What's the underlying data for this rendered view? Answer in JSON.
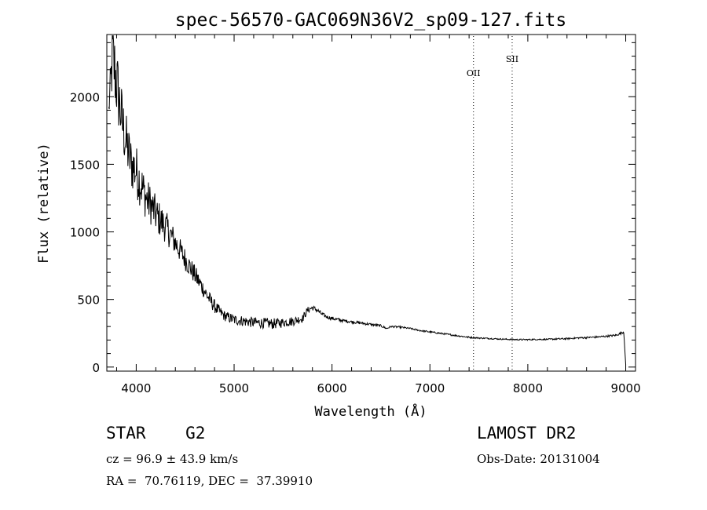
{
  "chart_data": {
    "type": "line",
    "title": "spec-56570-GAC069N36V2_sp09-127.fits",
    "xlabel": "Wavelength (Å)",
    "ylabel": "Flux (relative)",
    "xlim": [
      3700,
      9100
    ],
    "ylim": [
      -30,
      2460
    ],
    "xticks": [
      4000,
      5000,
      6000,
      7000,
      8000,
      9000
    ],
    "yticks": [
      0,
      500,
      1000,
      1500,
      2000
    ],
    "grid": false,
    "series": [
      {
        "x": [
          3720,
          3760,
          3800,
          3830,
          3860,
          3900,
          3950,
          4000,
          4050,
          4100,
          4150,
          4200,
          4250,
          4300,
          4350,
          4400,
          4450,
          4500,
          4550,
          4600,
          4650,
          4700,
          4750,
          4800,
          4850,
          4900,
          5000,
          5100,
          5200,
          5300,
          5400,
          5500,
          5600,
          5700,
          5750,
          5800,
          5850,
          5900,
          5950,
          6000,
          6100,
          6200,
          6300,
          6400,
          6500,
          6560,
          6600,
          6700,
          6800,
          6900,
          7000,
          7100,
          7200,
          7300,
          7400,
          7500,
          7600,
          7700,
          7800,
          7900,
          8000,
          8100,
          8200,
          8300,
          8400,
          8500,
          8600,
          8700,
          8800,
          8900,
          8950,
          8980,
          9000
        ],
        "y": [
          1900,
          2300,
          2100,
          1950,
          1800,
          1650,
          1500,
          1450,
          1350,
          1250,
          1200,
          1130,
          1080,
          1040,
          980,
          920,
          860,
          800,
          740,
          680,
          620,
          560,
          500,
          450,
          410,
          380,
          350,
          340,
          330,
          325,
          320,
          330,
          340,
          360,
          420,
          440,
          420,
          390,
          370,
          360,
          345,
          335,
          325,
          315,
          305,
          285,
          300,
          295,
          285,
          270,
          260,
          250,
          240,
          230,
          220,
          215,
          212,
          208,
          205,
          203,
          203,
          205,
          205,
          208,
          210,
          215,
          218,
          222,
          228,
          235,
          250,
          260,
          20
        ],
        "noise": [
          80,
          300,
          300,
          260,
          240,
          220,
          200,
          200,
          180,
          160,
          150,
          140,
          130,
          120,
          110,
          100,
          90,
          85,
          80,
          75,
          70,
          60,
          55,
          50,
          45,
          40,
          40,
          40,
          40,
          40,
          40,
          35,
          35,
          30,
          25,
          20,
          18,
          15,
          14,
          14,
          12,
          10,
          10,
          10,
          9,
          8,
          7,
          7,
          6,
          6,
          6,
          6,
          6,
          6,
          6,
          5,
          5,
          5,
          5,
          5,
          5,
          5,
          5,
          6,
          6,
          6,
          7,
          7,
          7,
          8,
          8,
          8,
          0
        ]
      }
    ],
    "line_markers": [
      {
        "label": "OII",
        "x": 7445
      },
      {
        "label": "SII",
        "x": 7840
      }
    ]
  },
  "info": {
    "class_line": "STAR    G2",
    "survey": "LAMOST DR2",
    "cz": "cz = 96.9 ± 43.9 km/s",
    "obs_date": "Obs-Date: 20131004",
    "coords": "RA =  70.76119, DEC =  37.39910"
  }
}
